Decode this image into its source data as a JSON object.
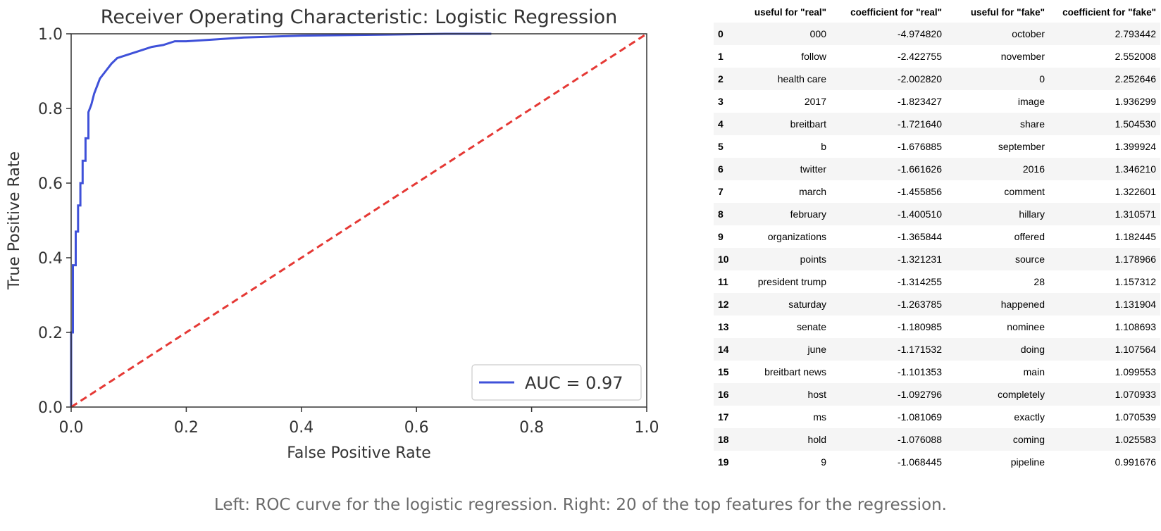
{
  "chart_data": {
    "type": "line",
    "title": "Receiver Operating Characteristic: Logistic Regression",
    "xlabel": "False Positive Rate",
    "ylabel": "True Positive Rate",
    "xlim": [
      0,
      1
    ],
    "ylim": [
      0,
      1
    ],
    "xticks": [
      "0.0",
      "0.2",
      "0.4",
      "0.6",
      "0.8",
      "1.0"
    ],
    "yticks": [
      "0.0",
      "0.2",
      "0.4",
      "0.6",
      "0.8",
      "1.0"
    ],
    "grid": false,
    "legend_position": "lower-right",
    "series": [
      {
        "name": "AUC = 0.97",
        "color": "#3f51d9",
        "x": [
          0,
          0,
          0.003,
          0.003,
          0.008,
          0.008,
          0.012,
          0.012,
          0.016,
          0.016,
          0.02,
          0.02,
          0.025,
          0.025,
          0.03,
          0.03,
          0.035,
          0.04,
          0.045,
          0.05,
          0.06,
          0.07,
          0.08,
          0.1,
          0.12,
          0.14,
          0.16,
          0.18,
          0.2,
          0.25,
          0.3,
          0.4,
          0.55,
          0.65,
          0.73
        ],
        "y": [
          0,
          0.2,
          0.2,
          0.38,
          0.38,
          0.47,
          0.47,
          0.54,
          0.54,
          0.6,
          0.6,
          0.66,
          0.66,
          0.72,
          0.72,
          0.79,
          0.81,
          0.84,
          0.86,
          0.88,
          0.9,
          0.92,
          0.935,
          0.945,
          0.955,
          0.965,
          0.97,
          0.98,
          0.98,
          0.985,
          0.99,
          0.995,
          0.998,
          1.0,
          1.0
        ]
      },
      {
        "name": "",
        "style": "dashed",
        "color": "#e53935",
        "x": [
          0,
          1
        ],
        "y": [
          0,
          1
        ]
      }
    ]
  },
  "table": {
    "columns": [
      "",
      "useful for \"real\"",
      "coefficient for \"real\"",
      "useful for \"fake\"",
      "coefficient for \"fake\""
    ],
    "rows": [
      [
        "0",
        "000",
        "-4.974820",
        "october",
        "2.793442"
      ],
      [
        "1",
        "follow",
        "-2.422755",
        "november",
        "2.552008"
      ],
      [
        "2",
        "health care",
        "-2.002820",
        "0",
        "2.252646"
      ],
      [
        "3",
        "2017",
        "-1.823427",
        "image",
        "1.936299"
      ],
      [
        "4",
        "breitbart",
        "-1.721640",
        "share",
        "1.504530"
      ],
      [
        "5",
        "b",
        "-1.676885",
        "september",
        "1.399924"
      ],
      [
        "6",
        "twitter",
        "-1.661626",
        "2016",
        "1.346210"
      ],
      [
        "7",
        "march",
        "-1.455856",
        "comment",
        "1.322601"
      ],
      [
        "8",
        "february",
        "-1.400510",
        "hillary",
        "1.310571"
      ],
      [
        "9",
        "organizations",
        "-1.365844",
        "offered",
        "1.182445"
      ],
      [
        "10",
        "points",
        "-1.321231",
        "source",
        "1.178966"
      ],
      [
        "11",
        "president trump",
        "-1.314255",
        "28",
        "1.157312"
      ],
      [
        "12",
        "saturday",
        "-1.263785",
        "happened",
        "1.131904"
      ],
      [
        "13",
        "senate",
        "-1.180985",
        "nominee",
        "1.108693"
      ],
      [
        "14",
        "june",
        "-1.171532",
        "doing",
        "1.107564"
      ],
      [
        "15",
        "breitbart news",
        "-1.101353",
        "main",
        "1.099553"
      ],
      [
        "16",
        "host",
        "-1.092796",
        "completely",
        "1.070933"
      ],
      [
        "17",
        "ms",
        "-1.081069",
        "exactly",
        "1.070539"
      ],
      [
        "18",
        "hold",
        "-1.076088",
        "coming",
        "1.025583"
      ],
      [
        "19",
        "9",
        "-1.068445",
        "pipeline",
        "0.991676"
      ]
    ]
  },
  "caption": "Left: ROC curve for the logistic regression. Right: 20 of the top features for the regression."
}
